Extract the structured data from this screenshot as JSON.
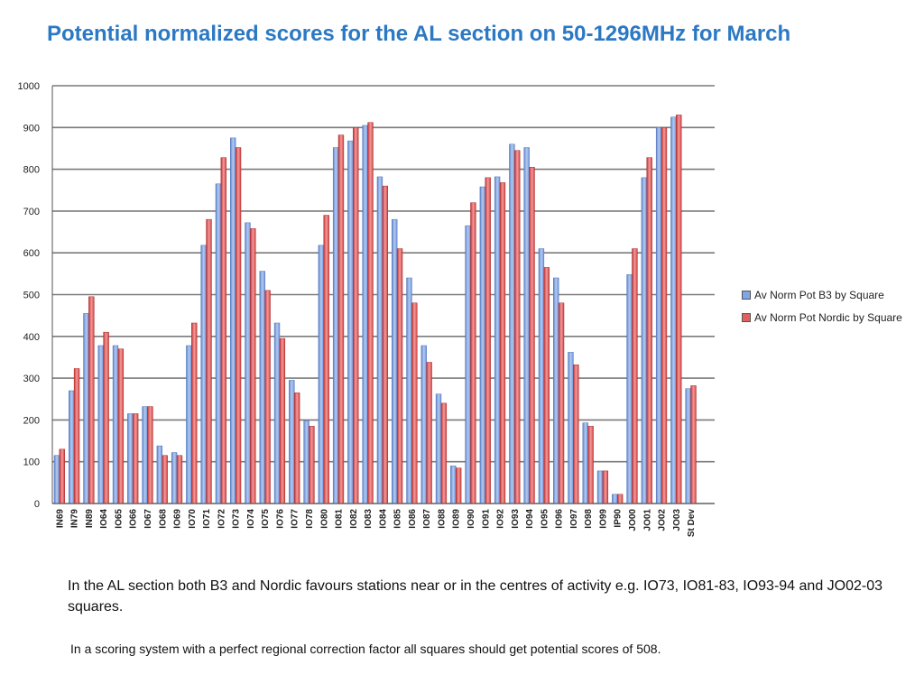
{
  "chart_data": {
    "type": "bar",
    "title": "Potential normalized scores for the AL section on 50-1296MHz for March",
    "xlabel": "",
    "ylabel": "",
    "ylim": [
      0,
      1000
    ],
    "yticks": [
      0,
      100,
      200,
      300,
      400,
      500,
      600,
      700,
      800,
      900,
      1000
    ],
    "grid": true,
    "legend_position": "right",
    "categories": [
      "IN69",
      "IN79",
      "IN89",
      "IO64",
      "IO65",
      "IO66",
      "IO67",
      "IO68",
      "IO69",
      "IO70",
      "IO71",
      "IO72",
      "IO73",
      "IO74",
      "IO75",
      "IO76",
      "IO77",
      "IO78",
      "IO80",
      "IO81",
      "IO82",
      "IO83",
      "IO84",
      "IO85",
      "IO86",
      "IO87",
      "IO88",
      "IO89",
      "IO90",
      "IO91",
      "IO92",
      "IO93",
      "IO94",
      "IO95",
      "IO96",
      "IO97",
      "IO98",
      "IO99",
      "IP90",
      "JO00",
      "JO01",
      "JO02",
      "JO03",
      "St Dev"
    ],
    "series": [
      {
        "name": "Av Norm Pot B3 by Square",
        "color": "#7fa6e6",
        "values": [
          115,
          270,
          455,
          378,
          378,
          215,
          232,
          138,
          122,
          378,
          618,
          765,
          875,
          672,
          556,
          432,
          295,
          198,
          618,
          852,
          868,
          905,
          782,
          680,
          540,
          378,
          262,
          90,
          665,
          758,
          782,
          860,
          852,
          610,
          540,
          362,
          193,
          78,
          22,
          548,
          780,
          900,
          925,
          275
        ]
      },
      {
        "name": "Av Norm Pot Nordic by Square",
        "color": "#e06060",
        "values": [
          130,
          323,
          495,
          410,
          370,
          215,
          232,
          115,
          115,
          432,
          680,
          828,
          852,
          658,
          510,
          395,
          265,
          185,
          690,
          882,
          900,
          912,
          760,
          610,
          480,
          338,
          240,
          85,
          720,
          780,
          768,
          845,
          805,
          565,
          480,
          332,
          185,
          78,
          22,
          610,
          828,
          900,
          930,
          282
        ]
      }
    ]
  },
  "notes": {
    "line1": "In the AL section both B3 and Nordic favours stations near or in the centres of activity  e.g. IO73, IO81-83, IO93-94 and JO02-03 squares.",
    "line2": "In a scoring system with a perfect regional correction factor all squares should get potential scores of 508."
  }
}
